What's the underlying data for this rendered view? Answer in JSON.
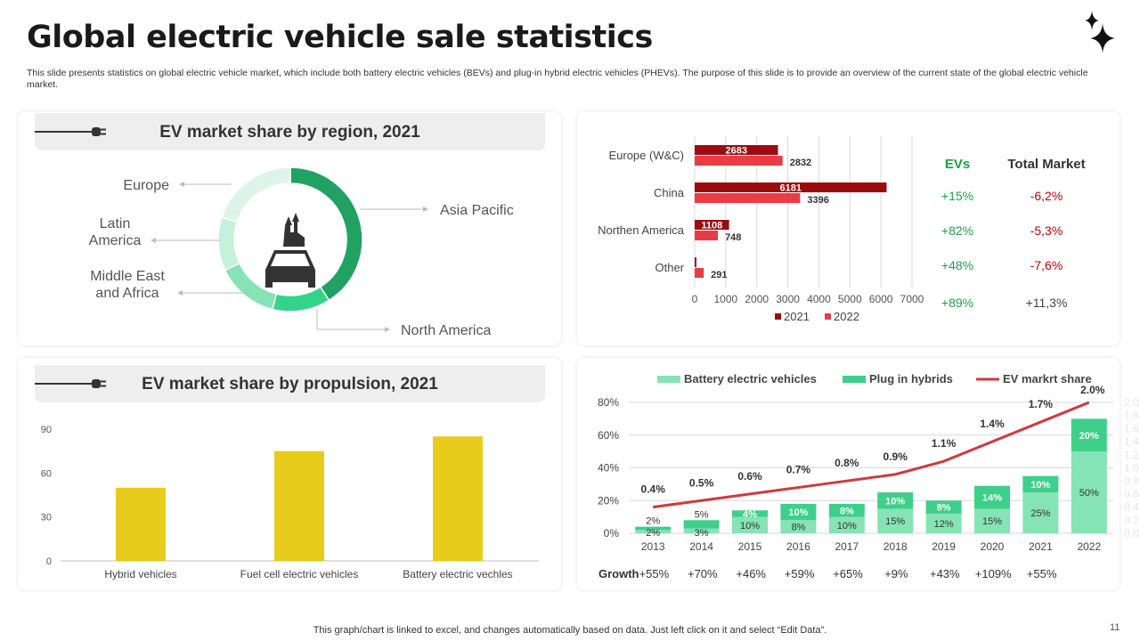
{
  "header": {
    "title": "Global electric vehicle sale statistics",
    "description": "This slide presents statistics on global electric vehicle market, which include both battery electric vehicles (BEVs) and plug-in hybrid electric vehicles (PHEVs). The purpose of this slide is to provide an overview of the current state of the global electric vehicle market.",
    "icon": "sparkle-icon"
  },
  "footer": {
    "note": "This graph/chart is linked to excel, and changes automatically based on data. Just left click on it and select “Edit Data”.",
    "page": "11"
  },
  "region_panel": {
    "title": "EV market share by region, 2021",
    "icon": "plug-icon",
    "center_icon": "car-icon"
  },
  "stats_table": {
    "headers": [
      "EVs",
      "Total Market"
    ],
    "rows": [
      [
        "+15%",
        "-6,2%"
      ],
      [
        "+82%",
        "-5,3%"
      ],
      [
        "+48%",
        "-7,6%"
      ],
      [
        "+89%",
        "+11,3%"
      ]
    ],
    "ev_color": "#1e9e4a",
    "market_color": "#c00000"
  },
  "propulsion_panel": {
    "title": "EV market share by propulsion, 2021",
    "icon": "plug-icon"
  },
  "growth": {
    "label": "Growth",
    "values": [
      "+55%",
      "+70%",
      "+46%",
      "+59%",
      "+65%",
      "+9%",
      "+43%",
      "+109%",
      "+55%"
    ]
  },
  "chart_data": [
    {
      "type": "pie",
      "title": "EV market share by region, 2021",
      "donut": true,
      "categories": [
        "Asia Pacific",
        "North America",
        "Middle East and Africa",
        "Latin America",
        "Europe"
      ],
      "values": [
        41,
        13,
        14,
        12,
        20
      ],
      "colors": [
        "#21a262",
        "#33d48a",
        "#86e3b5",
        "#c2f2d9",
        "#dcf5e8"
      ]
    },
    {
      "type": "bar",
      "orientation": "horizontal",
      "categories": [
        "Europe (W&C)",
        "China",
        "Northen America",
        "Other"
      ],
      "series": [
        {
          "name": "2021",
          "values": [
            2683,
            6181,
            1108,
            55
          ],
          "color": "#9e0b0f"
        },
        {
          "name": "2022",
          "values": [
            2832,
            3396,
            748,
            291
          ],
          "color": "#e83d45"
        }
      ],
      "xlim": [
        0,
        7000
      ],
      "xticks": [
        0,
        1000,
        2000,
        3000,
        4000,
        5000,
        6000,
        7000
      ],
      "legend": "bottom",
      "grid": true
    },
    {
      "type": "bar",
      "title": "EV market share by propulsion, 2021",
      "categories": [
        "Hybrid vehicles",
        "Fuel cell electric vehicles",
        "Battery electric vechles"
      ],
      "values": [
        50,
        75,
        85
      ],
      "ylim": [
        0,
        90
      ],
      "yticks": [
        0,
        30,
        60,
        90
      ],
      "color": "#e8cc1c",
      "grid": false
    },
    {
      "type": "bar",
      "stacked": true,
      "categories": [
        "2013",
        "2014",
        "2015",
        "2016",
        "2017",
        "2018",
        "2019",
        "2020",
        "2021",
        "2022"
      ],
      "series": [
        {
          "name": "Battery electric vehicles",
          "values": [
            2,
            3,
            10,
            8,
            10,
            15,
            12,
            15,
            25,
            50
          ],
          "color": "#86e3b5",
          "labels": [
            "2%",
            "3%",
            "10%",
            "8%",
            "10%",
            "15%",
            "12%",
            "15%",
            "25%",
            "50%"
          ]
        },
        {
          "name": "Plug in hybrids",
          "values": [
            2,
            5,
            4,
            10,
            8,
            10,
            8,
            14,
            10,
            20
          ],
          "color": "#3ecf8a",
          "labels": [
            "2%",
            "5%",
            "4%",
            "10%",
            "8%",
            "10%",
            "8%",
            "14%",
            "10%",
            "20%"
          ]
        },
        {
          "name": "EV markrt share",
          "type": "line",
          "axis": "right",
          "values": [
            0.4,
            0.5,
            0.6,
            0.7,
            0.8,
            0.9,
            1.1,
            1.4,
            1.7,
            2.0
          ],
          "color": "#d0393e",
          "labels": [
            "0.4%",
            "0.5%",
            "0.6%",
            "0.7%",
            "0.8%",
            "0.9%",
            "1.1%",
            "1.4%",
            "1.7%",
            "2.0%"
          ]
        }
      ],
      "ylim": [
        0,
        80
      ],
      "yticks": [
        "0%",
        "20%",
        "40%",
        "60%",
        "80%"
      ],
      "y2lim": [
        0,
        2.0
      ],
      "y2ticks": [
        "0.0",
        "0.2",
        "0.4",
        "0.6",
        "0.8",
        "1.0",
        "1.2",
        "1.4",
        "1.6",
        "1.8",
        "2.0"
      ],
      "legend": "top",
      "grid": true
    }
  ]
}
